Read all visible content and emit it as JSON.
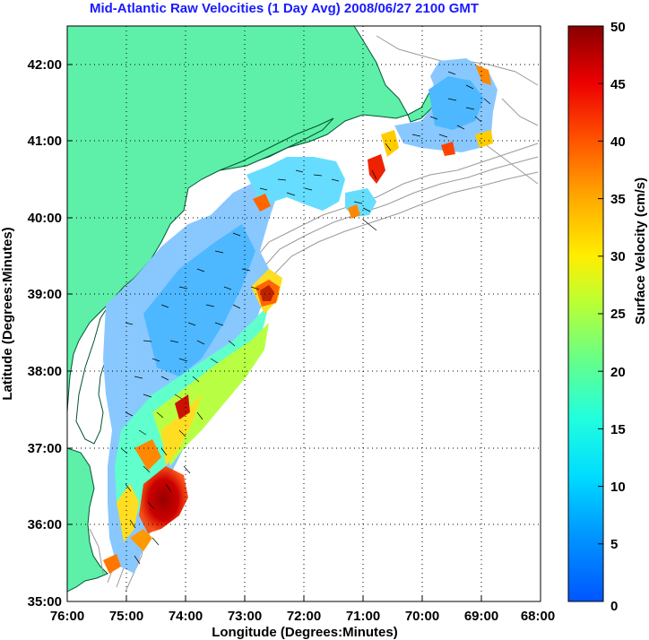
{
  "title": "Mid-Atlantic Raw Velocities (1 Day Avg) 2008/06/27 2100 GMT",
  "map": {
    "xlabel": "Longitude (Degrees:Minutes)",
    "ylabel": "Latitude (Degrees:Minutes)",
    "lon_ticks": [
      "76:00",
      "75:00",
      "74:00",
      "73:00",
      "72:00",
      "71:00",
      "70:00",
      "69:00",
      "68:00"
    ],
    "lat_ticks": [
      "35:00",
      "36:00",
      "37:00",
      "38:00",
      "39:00",
      "40:00",
      "41:00",
      "42:00"
    ],
    "land_color": "#5ef0a8",
    "grid": "dotted"
  },
  "colorbar": {
    "label": "Surface Velocity (cm/s)",
    "ticks": [
      "0",
      "5",
      "10",
      "15",
      "20",
      "25",
      "30",
      "35",
      "40",
      "45",
      "50"
    ],
    "colormap": "jet"
  }
}
